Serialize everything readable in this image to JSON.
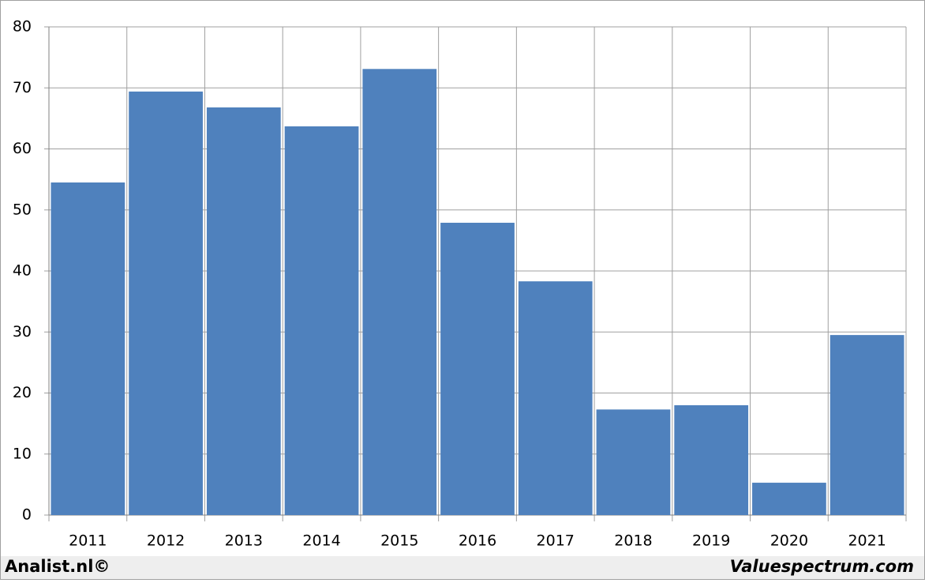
{
  "chart_data": {
    "type": "bar",
    "categories": [
      "2011",
      "2012",
      "2013",
      "2014",
      "2015",
      "2016",
      "2017",
      "2018",
      "2019",
      "2020",
      "2021"
    ],
    "values": [
      54.5,
      69.4,
      66.8,
      63.7,
      73.1,
      47.9,
      38.3,
      17.3,
      18.0,
      5.3,
      29.5
    ],
    "color": "#4f81bd",
    "ylim": [
      0,
      80
    ],
    "yticks": [
      0,
      10,
      20,
      30,
      40,
      50,
      60,
      70,
      80
    ],
    "grid": true,
    "source_left": "Analist.nl©",
    "source_right": "Valuespectrum.com"
  }
}
